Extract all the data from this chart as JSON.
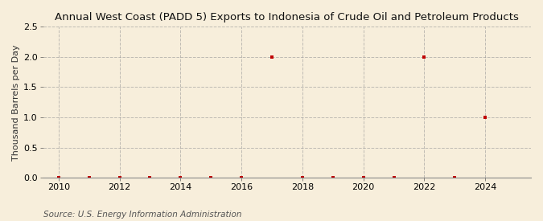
{
  "title": "Annual West Coast (PADD 5) Exports to Indonesia of Crude Oil and Petroleum Products",
  "ylabel": "Thousand Barrels per Day",
  "source": "Source: U.S. Energy Information Administration",
  "background_color": "#f7eedb",
  "plot_bg_color": "#f7eedb",
  "xlim": [
    2009.5,
    2025.5
  ],
  "ylim": [
    0.0,
    2.5
  ],
  "yticks": [
    0.0,
    0.5,
    1.0,
    1.5,
    2.0,
    2.5
  ],
  "xticks": [
    2010,
    2012,
    2014,
    2016,
    2018,
    2020,
    2022,
    2024
  ],
  "marker_color": "#c00000",
  "marker": "s",
  "marker_size": 3.5,
  "years": [
    2010,
    2011,
    2012,
    2013,
    2014,
    2015,
    2016,
    2017,
    2018,
    2019,
    2020,
    2021,
    2022,
    2023,
    2024
  ],
  "values": [
    0.0,
    0.0,
    0.0,
    0.0,
    0.0,
    0.0,
    0.0,
    2.0,
    0.0,
    0.0,
    0.0,
    0.0,
    2.0,
    0.0,
    1.0
  ],
  "grid_color": "#999999",
  "grid_style": "--",
  "grid_alpha": 0.6,
  "title_fontsize": 9.5,
  "axis_fontsize": 8,
  "tick_fontsize": 8,
  "source_fontsize": 7.5
}
